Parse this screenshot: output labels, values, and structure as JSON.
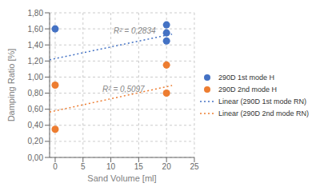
{
  "chart_data": {
    "type": "scatter",
    "x_label": "Sand Volume [ml]",
    "y_label": "Damping Ratio [%]",
    "series": [
      {
        "name": "290D 1st mode H",
        "type": "scatter",
        "marker": "circle",
        "color": "#4472C4",
        "x": [
          0,
          20,
          20,
          20
        ],
        "values": [
          1.6,
          1.65,
          1.55,
          1.45
        ]
      },
      {
        "name": "290D 2nd mode H",
        "type": "scatter",
        "marker": "circle",
        "color": "#ED7D31",
        "x": [
          0,
          0,
          20,
          20
        ],
        "values": [
          0.9,
          0.35,
          1.15,
          0.8
        ]
      },
      {
        "name": "Linear (290D 1st mode RN)",
        "type": "line",
        "line_style": "dotted",
        "color": "#4472C4",
        "x": [
          -1,
          21
        ],
        "values": [
          1.215,
          1.535
        ]
      },
      {
        "name": "Linear (290D 2nd mode RN)",
        "type": "line",
        "line_style": "dotted",
        "color": "#ED7D31",
        "x": [
          -1,
          21
        ],
        "values": [
          0.565,
          0.895
        ]
      }
    ],
    "annotations": [
      {
        "text": "R² = 0,2834",
        "x": 10.5,
        "y": 1.52
      },
      {
        "text": "R² = 0,5097",
        "x": 8.5,
        "y": 0.8
      }
    ],
    "xlim": [
      -1,
      25
    ],
    "ylim": [
      0.0,
      1.8
    ],
    "xticks": [
      0,
      5,
      10,
      15,
      20,
      25
    ],
    "yticks": [
      {
        "value": 0.0,
        "label": "0,00"
      },
      {
        "value": 0.2,
        "label": "0,20"
      },
      {
        "value": 0.4,
        "label": "0,40"
      },
      {
        "value": 0.6,
        "label": "0,60"
      },
      {
        "value": 0.8,
        "label": "0,80"
      },
      {
        "value": 1.0,
        "label": "1,00"
      },
      {
        "value": 1.2,
        "label": "1,20"
      },
      {
        "value": 1.4,
        "label": "1,40"
      },
      {
        "value": 1.6,
        "label": "1,60"
      },
      {
        "value": 1.8,
        "label": "1,80"
      }
    ],
    "grid": true,
    "legend": "right"
  }
}
